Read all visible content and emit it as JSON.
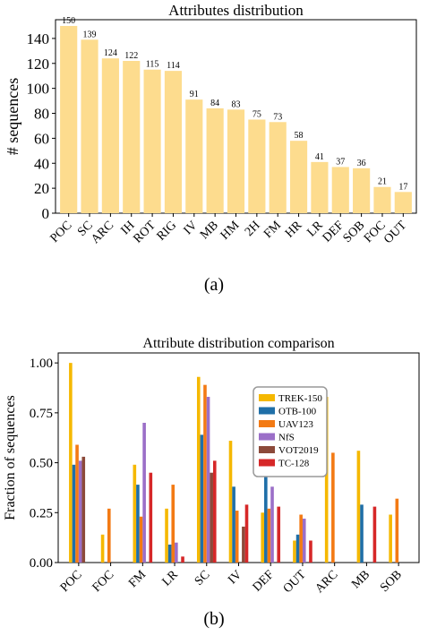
{
  "captions": {
    "a": "(a)",
    "b": "(b)"
  },
  "chart_data": [
    {
      "type": "bar",
      "title": "Attributes distribution",
      "xlabel": "",
      "ylabel": "# sequences",
      "ylim": [
        0,
        155
      ],
      "yticks": [
        0,
        20,
        40,
        60,
        80,
        100,
        120,
        140
      ],
      "categories": [
        "POC",
        "SC",
        "ARC",
        "IH",
        "ROT",
        "RIG",
        "IV",
        "MB",
        "HM",
        "2H",
        "FM",
        "HR",
        "LR",
        "DEF",
        "SOB",
        "FOC",
        "OUT"
      ],
      "values": [
        150,
        139,
        124,
        122,
        115,
        114,
        91,
        84,
        83,
        75,
        73,
        58,
        41,
        37,
        36,
        21,
        17
      ],
      "colors": {
        "bar": "#fddc8e"
      },
      "grid": false
    },
    {
      "type": "bar",
      "title": "Attribute distribution comparison",
      "xlabel": "",
      "ylabel": "Fraction of sequences",
      "ylim": [
        0,
        1.05
      ],
      "yticks": [
        "0.00",
        "0.25",
        "0.50",
        "0.75",
        "1.00"
      ],
      "categories": [
        "POC",
        "FOC",
        "FM",
        "LR",
        "SC",
        "IV",
        "DEF",
        "OUT",
        "ARC",
        "MB",
        "SOB"
      ],
      "legend_position": "top-center",
      "grid": false,
      "series": [
        {
          "name": "TREK-150",
          "color": "#f5b800",
          "values": [
            1.0,
            0.14,
            0.49,
            0.27,
            0.93,
            0.61,
            0.25,
            0.11,
            0.83,
            0.56,
            0.24
          ]
        },
        {
          "name": "OTB-100",
          "color": "#1f6fa8",
          "values": [
            0.49,
            null,
            0.39,
            0.09,
            0.64,
            0.38,
            0.44,
            0.14,
            null,
            0.29,
            null
          ]
        },
        {
          "name": "UAV123",
          "color": "#f37a14",
          "values": [
            0.59,
            0.27,
            0.23,
            0.39,
            0.89,
            0.26,
            0.27,
            0.24,
            0.55,
            null,
            0.32
          ]
        },
        {
          "name": "NfS",
          "color": "#9b6fc8",
          "values": [
            0.51,
            null,
            0.7,
            0.1,
            0.83,
            null,
            0.38,
            0.22,
            null,
            null,
            null
          ]
        },
        {
          "name": "VOT2019",
          "color": "#8c4a3a",
          "values": [
            0.53,
            null,
            null,
            null,
            0.45,
            0.18,
            null,
            null,
            null,
            null,
            null
          ]
        },
        {
          "name": "TC-128",
          "color": "#d62728",
          "values": [
            null,
            null,
            0.45,
            0.03,
            0.51,
            0.29,
            0.28,
            0.11,
            null,
            0.28,
            null
          ]
        }
      ]
    }
  ]
}
